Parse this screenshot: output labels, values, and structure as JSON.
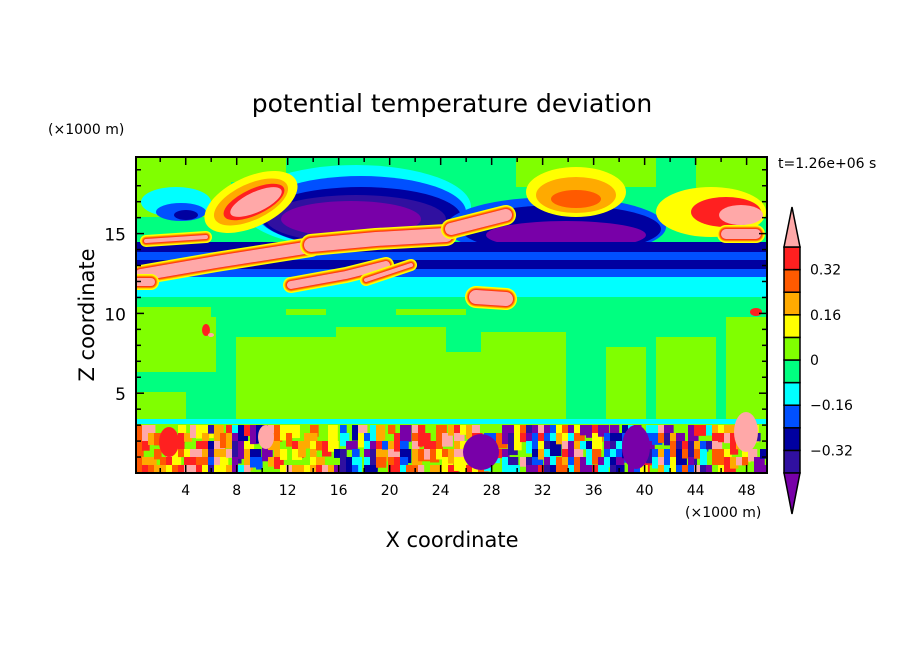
{
  "chart_data": {
    "type": "heatmap",
    "title": "potential temperature deviation",
    "xlabel": "X coordinate",
    "ylabel": "Z coordinate",
    "x_unit_label": "(×1000 m)",
    "y_unit_label": "(×1000 m)",
    "time_label": "t=1.26e+06 s",
    "xlim": [
      0.1,
      49.6
    ],
    "ylim": [
      0,
      19.8
    ],
    "x_ticks": [
      4,
      8,
      12,
      16,
      20,
      24,
      28,
      32,
      36,
      40,
      44,
      48
    ],
    "x_tick_labels": [
      "4",
      "8",
      "12",
      "16",
      "20",
      "24",
      "28",
      "32",
      "36",
      "40",
      "44",
      "48"
    ],
    "x_minor_step": 2,
    "y_ticks": [
      5,
      10,
      15
    ],
    "y_tick_labels": [
      "5",
      "10",
      "15"
    ],
    "y_minor_step": 1,
    "colorbar": {
      "levels": [
        -0.4,
        -0.32,
        -0.24,
        -0.16,
        -0.08,
        0,
        0.08,
        0.16,
        0.24,
        0.32,
        0.4
      ],
      "labels": [
        "0.32",
        "0.16",
        "0",
        "−0.16",
        "−0.32"
      ],
      "label_values": [
        0.32,
        0.16,
        0,
        -0.16,
        -0.32
      ],
      "colors": [
        "#7800a8",
        "#3010a0",
        "#0000a0",
        "#0050ff",
        "#00ffff",
        "#00ff80",
        "#80ff00",
        "#ffff00",
        "#ffaa00",
        "#ff5a00",
        "#ff2020",
        "#ffa8a8"
      ],
      "extend": "both"
    },
    "description_of_field": "Contoured potential temperature deviation: turbulent mixed layer below z~3.5, near-zero mid levels, strong positive/negative layered anomalies between z~11 and z~18"
  }
}
